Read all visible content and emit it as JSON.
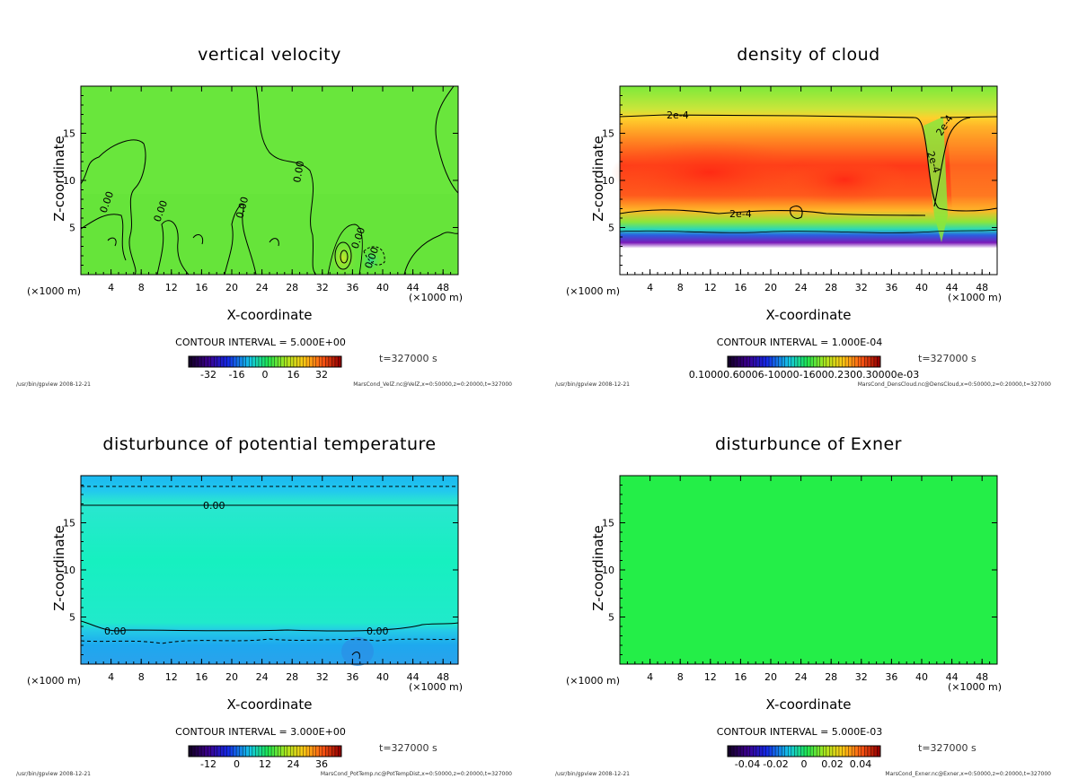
{
  "chart_data": [
    {
      "type": "heatmap",
      "title": "vertical velocity",
      "xlabel": "X-coordinate",
      "ylabel": "Z-coordinate",
      "x_unit_left": "(×1000 m)",
      "x_unit_right": "(×1000 m)",
      "xlim": [
        0,
        50
      ],
      "ylim": [
        0,
        20
      ],
      "xticks": [
        "4",
        "8",
        "12",
        "16",
        "20",
        "24",
        "28",
        "32",
        "36",
        "40",
        "44",
        "48"
      ],
      "yticks": [
        "5",
        "10",
        "15"
      ],
      "contour_interval": "CONTOUR INTERVAL = 5.000E+00",
      "time": "t=327000 s",
      "colorbar_ticks": [
        "-32",
        "-16",
        "0",
        "16",
        "32"
      ],
      "contour_labels": [
        "0.00",
        "0.00",
        "0.00",
        "0.00",
        "0.00",
        "0.00"
      ],
      "footer_left": "/usr/bin/gpview  2008-12-21",
      "footer_right": "MarsCond_VelZ.nc@VelZ,x=0:50000,z=0:20000,t=327000"
    },
    {
      "type": "heatmap",
      "title": "density of cloud",
      "xlabel": "X-coordinate",
      "ylabel": "Z-coordinate",
      "x_unit_left": "(×1000 m)",
      "x_unit_right": "(×1000 m)",
      "xlim": [
        0,
        50
      ],
      "ylim": [
        0,
        20
      ],
      "xticks": [
        "4",
        "8",
        "12",
        "16",
        "20",
        "24",
        "28",
        "32",
        "36",
        "40",
        "44",
        "48"
      ],
      "yticks": [
        "5",
        "10",
        "15"
      ],
      "contour_interval": "CONTOUR INTERVAL = 1.000E-04",
      "time": "t=327000 s",
      "colorbar_ticks": [
        "0.10000.60006-10000-16000.2300.30000e-03"
      ],
      "contour_labels": [
        "2e-4",
        "2e-4",
        "2e-4",
        "2e-4"
      ],
      "footer_left": "/usr/bin/gpview  2008-12-21",
      "footer_right": "MarsCond_DensCloud.nc@DensCloud,x=0:50000,z=0:20000,t=327000"
    },
    {
      "type": "heatmap",
      "title": "disturbunce of potential temperature",
      "xlabel": "X-coordinate",
      "ylabel": "Z-coordinate",
      "x_unit_left": "(×1000 m)",
      "x_unit_right": "(×1000 m)",
      "xlim": [
        0,
        50
      ],
      "ylim": [
        0,
        20
      ],
      "xticks": [
        "4",
        "8",
        "12",
        "16",
        "20",
        "24",
        "28",
        "32",
        "36",
        "40",
        "44",
        "48"
      ],
      "yticks": [
        "5",
        "10",
        "15"
      ],
      "contour_interval": "CONTOUR INTERVAL = 3.000E+00",
      "time": "t=327000 s",
      "colorbar_ticks": [
        "-12",
        "0",
        "12",
        "24",
        "36"
      ],
      "contour_labels": [
        "0.00",
        "0.00",
        "0.00"
      ],
      "footer_left": "/usr/bin/gpview  2008-12-21",
      "footer_right": "MarsCond_PotTemp.nc@PotTempDist,x=0:50000,z=0:20000,t=327000"
    },
    {
      "type": "heatmap",
      "title": "disturbunce of Exner",
      "xlabel": "X-coordinate",
      "ylabel": "Z-coordinate",
      "x_unit_left": "(×1000 m)",
      "x_unit_right": "(×1000 m)",
      "xlim": [
        0,
        50
      ],
      "ylim": [
        0,
        20
      ],
      "xticks": [
        "4",
        "8",
        "12",
        "16",
        "20",
        "24",
        "28",
        "32",
        "36",
        "40",
        "44",
        "48"
      ],
      "yticks": [
        "5",
        "10",
        "15"
      ],
      "contour_interval": "CONTOUR INTERVAL = 5.000E-03",
      "time": "t=327000 s",
      "colorbar_ticks": [
        "-0.04",
        "-0.02",
        "0",
        "0.02",
        "0.04"
      ],
      "contour_labels": [],
      "footer_left": "/usr/bin/gpview  2008-12-21",
      "footer_right": "MarsCond_Exner.nc@Exner,x=0:50000,z=0:20000,t=327000"
    }
  ]
}
